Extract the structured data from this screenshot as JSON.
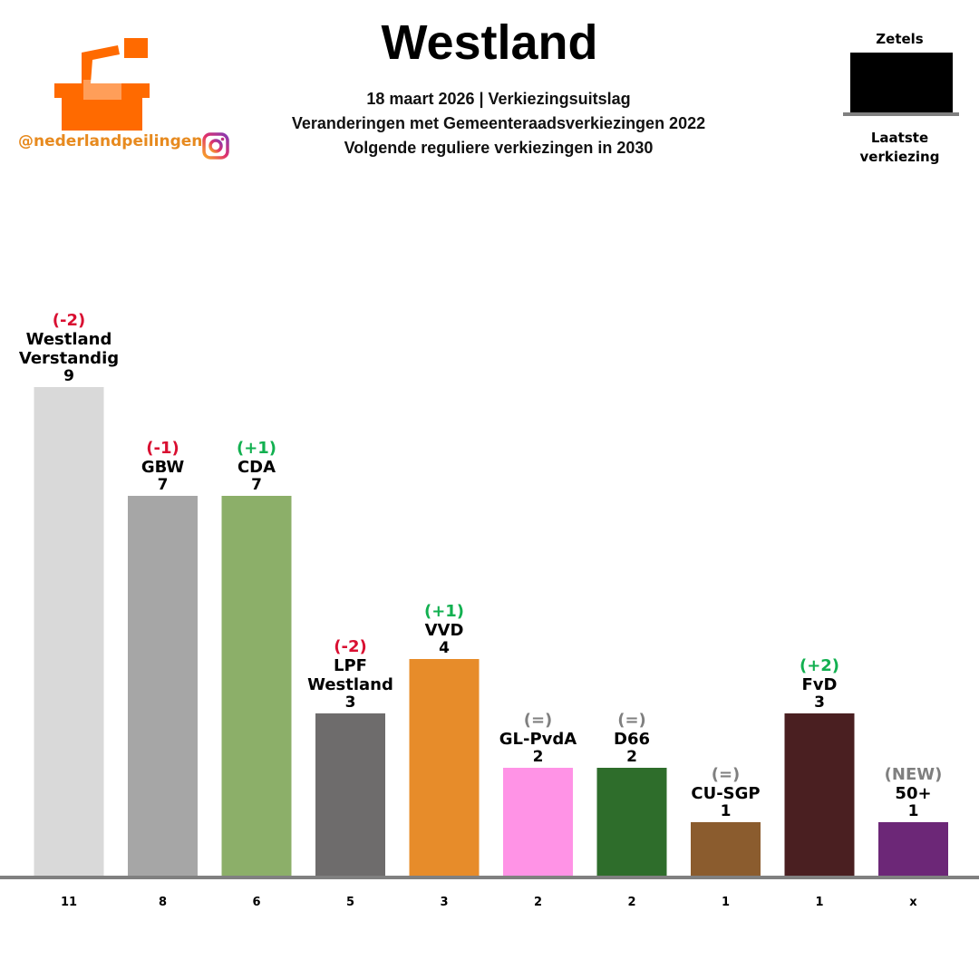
{
  "header": {
    "title": "Westland",
    "subtitle_lines": [
      "18 maart 2026 | Verkiezingsuitslag",
      "Veranderingen met Gemeenteraadsverkiezingen 2022",
      "Volgende reguliere verkiezingen in 2030"
    ],
    "handle": "@nederlandpeilingen"
  },
  "legend": {
    "top_label": "Zetels",
    "bottom_label_lines": [
      "Laatste",
      "verkiezing"
    ]
  },
  "icons": {
    "logo": "ballot-box-logo",
    "social": "instagram-icon"
  },
  "colors": {
    "brand": "#ff6a00",
    "increase": "#12b050",
    "decrease": "#d90f31",
    "neutral": "#7f7f7f",
    "baseline": "#808080"
  },
  "chart_data": {
    "type": "bar",
    "categories": [
      "Westland Verstandig",
      "GBW",
      "CDA",
      "LPF Westland",
      "VVD",
      "GL-PvdA",
      "D66",
      "CU-SGP",
      "FvD",
      "50+"
    ],
    "category_label_lines": [
      [
        "Westland",
        "Verstandig"
      ],
      [
        "GBW"
      ],
      [
        "CDA"
      ],
      [
        "LPF",
        "Westland"
      ],
      [
        "VVD"
      ],
      [
        "GL-PvdA"
      ],
      [
        "D66"
      ],
      [
        "CU-SGP"
      ],
      [
        "FvD"
      ],
      [
        "50+"
      ]
    ],
    "values": [
      9,
      7,
      7,
      3,
      4,
      2,
      2,
      1,
      3,
      1
    ],
    "value_labels": [
      "9",
      "7",
      "7",
      "3",
      "4",
      "2",
      "2",
      "1",
      "3",
      "1"
    ],
    "changes": [
      "(-2)",
      "(-1)",
      "(+1)",
      "(-2)",
      "(+1)",
      "(=)",
      "(=)",
      "(=)",
      "(+2)",
      "(NEW)"
    ],
    "change_types": [
      "down",
      "down",
      "up",
      "down",
      "up",
      "same",
      "same",
      "same",
      "up",
      "new"
    ],
    "previous": [
      "11",
      "8",
      "6",
      "5",
      "3",
      "2",
      "2",
      "1",
      "1",
      "x"
    ],
    "colors": [
      "#d9d9d9",
      "#a6a6a6",
      "#8caf69",
      "#6e6c6c",
      "#e78c2a",
      "#ff93e6",
      "#2e6d2b",
      "#8b5c2e",
      "#4a1f21",
      "#6c2777"
    ],
    "ylim": [
      0,
      9
    ]
  }
}
